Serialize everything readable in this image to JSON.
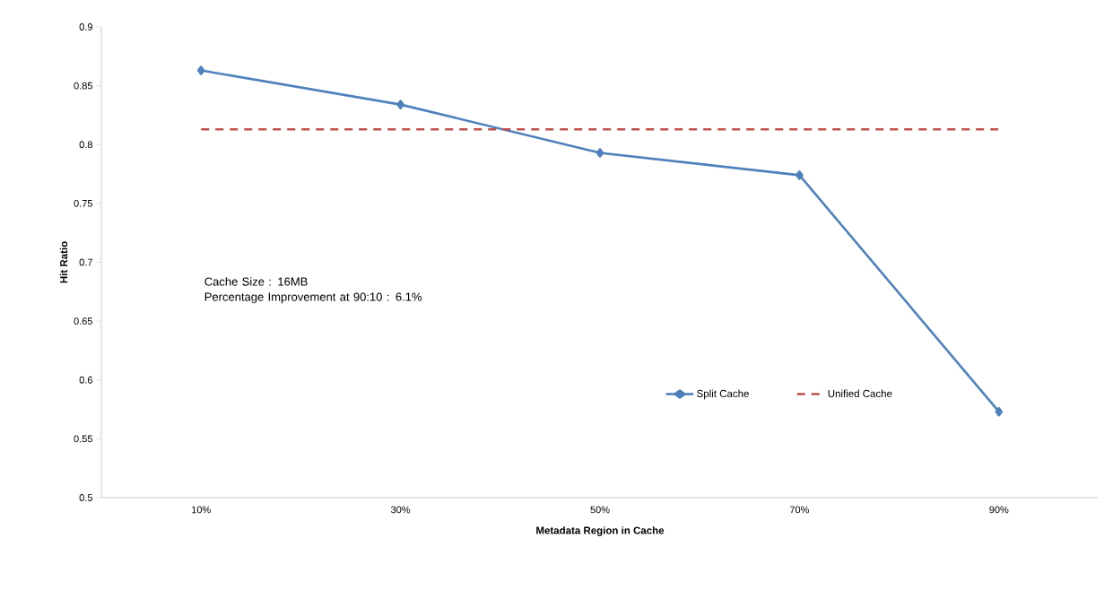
{
  "chart_data": {
    "type": "line",
    "xlabel": "Metadata Region in Cache",
    "ylabel": "Hit Ratio",
    "categories": [
      "10%",
      "30%",
      "50%",
      "70%",
      "90%"
    ],
    "series": [
      {
        "name": "Split Cache",
        "color": "#4f81bd",
        "values": [
          0.863,
          0.834,
          0.793,
          0.774,
          0.573
        ],
        "marker": "diamond",
        "line_style": "solid"
      },
      {
        "name": "Unified Cache",
        "color": "#c0504d",
        "values": [
          0.813,
          0.813,
          0.813,
          0.813,
          0.813
        ],
        "marker": "none",
        "line_style": "dashed"
      }
    ],
    "ylim": [
      0.5,
      0.9
    ],
    "yticks": [
      0.5,
      0.55,
      0.6,
      0.65,
      0.7,
      0.75,
      0.8,
      0.85,
      0.9
    ],
    "legend": "right",
    "annotations": [
      "Cache Size : 16MB",
      "Percentage Improvement at 90:10 : 6.1%"
    ]
  }
}
